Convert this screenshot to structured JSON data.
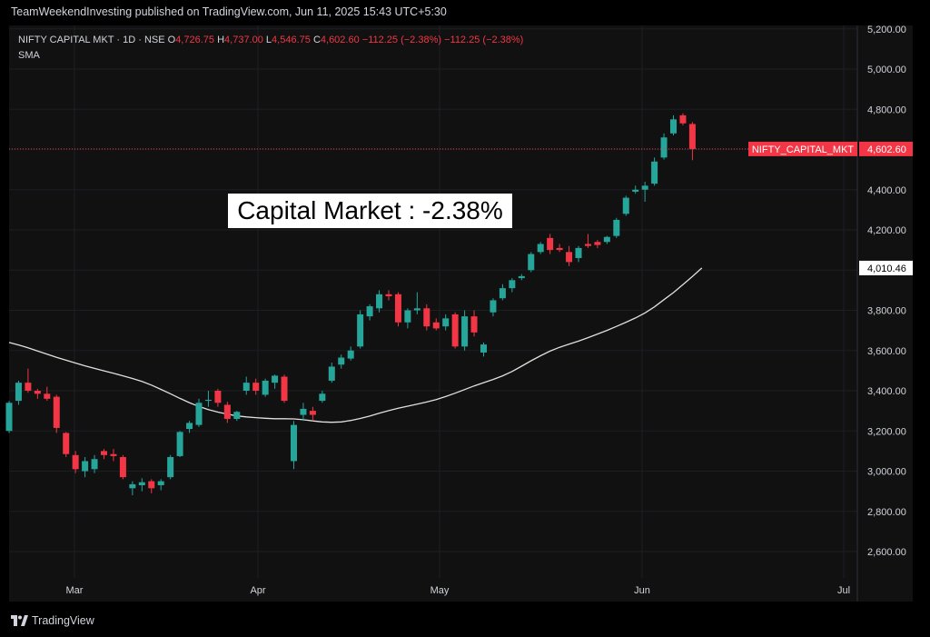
{
  "header": {
    "published_line": "TeamWeekendInvesting published on TradingView.com, Jun 11, 2025 15:43 UTC+5:30"
  },
  "legend": {
    "symbol_line": "NIFTY CAPITAL MKT · 1D · NSE",
    "open_label": "O",
    "open_value": "4,726.75",
    "high_label": "H",
    "high_value": "4,737.00",
    "low_label": "L",
    "low_value": "4,546.75",
    "close_label": "C",
    "close_value": "4,602.60",
    "change_1": "−112.25 (−2.38%)",
    "change_2": "−112.25 (−2.38%)",
    "indicator": "SMA"
  },
  "annotation": {
    "text": "Capital Market : -2.38%"
  },
  "footer": {
    "brand": "TradingView"
  },
  "colors": {
    "background": "#111111",
    "up": "#26a69a",
    "down": "#f23645",
    "sma": "#e0e0e0",
    "axis_text": "#d1d4dc"
  },
  "chart_data": {
    "type": "candlestick",
    "symbol": "NIFTY CAPITAL MKT",
    "interval": "1D",
    "exchange": "NSE",
    "y_axis": {
      "ticks": [
        2600,
        2800,
        3000,
        3200,
        3400,
        3600,
        3800,
        4000,
        4200,
        4400,
        4600,
        4800,
        5000,
        5200
      ],
      "tick_labels": [
        "2,600.00",
        "2,800.00",
        "3,000.00",
        "3,200.00",
        "3,400.00",
        "3,600.00",
        "3,800.00",
        "4,000.00",
        "4,200.00",
        "4,400.00",
        "4,600.00",
        "4,800.00",
        "5,000.00",
        "5,200.00"
      ],
      "range": [
        2470,
        5200
      ]
    },
    "x_axis": {
      "labels": [
        "Mar",
        "Apr",
        "May",
        "Jun",
        "Jul"
      ]
    },
    "last_price": {
      "label": "NIFTY_CAPITAL_MKT",
      "value": 4602.6,
      "display": "4,602.60"
    },
    "sma_last": {
      "value": 4010.46,
      "display": "4,010.46"
    },
    "candles": [
      {
        "o": 3200,
        "h": 3350,
        "l": 3190,
        "c": 3340
      },
      {
        "o": 3350,
        "h": 3450,
        "l": 3330,
        "c": 3440
      },
      {
        "o": 3440,
        "h": 3510,
        "l": 3390,
        "c": 3400
      },
      {
        "o": 3400,
        "h": 3410,
        "l": 3360,
        "c": 3385
      },
      {
        "o": 3385,
        "h": 3420,
        "l": 3350,
        "c": 3360
      },
      {
        "o": 3370,
        "h": 3380,
        "l": 3190,
        "c": 3215
      },
      {
        "o": 3190,
        "h": 3195,
        "l": 3070,
        "c": 3085
      },
      {
        "o": 3080,
        "h": 3100,
        "l": 2990,
        "c": 3010
      },
      {
        "o": 3000,
        "h": 3070,
        "l": 2970,
        "c": 3050
      },
      {
        "o": 3010,
        "h": 3080,
        "l": 2990,
        "c": 3060
      },
      {
        "o": 3100,
        "h": 3110,
        "l": 3060,
        "c": 3080
      },
      {
        "o": 3085,
        "h": 3110,
        "l": 3050,
        "c": 3075
      },
      {
        "o": 3070,
        "h": 3080,
        "l": 2960,
        "c": 2970
      },
      {
        "o": 2915,
        "h": 2950,
        "l": 2880,
        "c": 2935
      },
      {
        "o": 2930,
        "h": 2965,
        "l": 2900,
        "c": 2945
      },
      {
        "o": 2950,
        "h": 2960,
        "l": 2890,
        "c": 2915
      },
      {
        "o": 2930,
        "h": 2960,
        "l": 2905,
        "c": 2950
      },
      {
        "o": 2970,
        "h": 3080,
        "l": 2960,
        "c": 3070
      },
      {
        "o": 3075,
        "h": 3200,
        "l": 3070,
        "c": 3195
      },
      {
        "o": 3210,
        "h": 3250,
        "l": 3190,
        "c": 3240
      },
      {
        "o": 3230,
        "h": 3360,
        "l": 3220,
        "c": 3340
      },
      {
        "o": 3350,
        "h": 3400,
        "l": 3320,
        "c": 3355
      },
      {
        "o": 3400,
        "h": 3410,
        "l": 3320,
        "c": 3340
      },
      {
        "o": 3330,
        "h": 3345,
        "l": 3240,
        "c": 3260
      },
      {
        "o": 3260,
        "h": 3300,
        "l": 3250,
        "c": 3295
      },
      {
        "o": 3400,
        "h": 3470,
        "l": 3380,
        "c": 3440
      },
      {
        "o": 3440,
        "h": 3460,
        "l": 3380,
        "c": 3400
      },
      {
        "o": 3380,
        "h": 3460,
        "l": 3370,
        "c": 3450
      },
      {
        "o": 3440,
        "h": 3480,
        "l": 3410,
        "c": 3475
      },
      {
        "o": 3470,
        "h": 3480,
        "l": 3340,
        "c": 3350
      },
      {
        "o": 3050,
        "h": 3250,
        "l": 3010,
        "c": 3230
      },
      {
        "o": 3280,
        "h": 3340,
        "l": 3250,
        "c": 3310
      },
      {
        "o": 3300,
        "h": 3320,
        "l": 3250,
        "c": 3280
      },
      {
        "o": 3350,
        "h": 3400,
        "l": 3340,
        "c": 3385
      },
      {
        "o": 3450,
        "h": 3540,
        "l": 3440,
        "c": 3520
      },
      {
        "o": 3530,
        "h": 3580,
        "l": 3510,
        "c": 3565
      },
      {
        "o": 3560,
        "h": 3620,
        "l": 3550,
        "c": 3600
      },
      {
        "o": 3620,
        "h": 3800,
        "l": 3610,
        "c": 3780
      },
      {
        "o": 3770,
        "h": 3830,
        "l": 3750,
        "c": 3820
      },
      {
        "o": 3810,
        "h": 3900,
        "l": 3790,
        "c": 3880
      },
      {
        "o": 3880,
        "h": 3900,
        "l": 3850,
        "c": 3870
      },
      {
        "o": 3880,
        "h": 3890,
        "l": 3720,
        "c": 3740
      },
      {
        "o": 3740,
        "h": 3810,
        "l": 3710,
        "c": 3800
      },
      {
        "o": 3800,
        "h": 3890,
        "l": 3780,
        "c": 3810
      },
      {
        "o": 3810,
        "h": 3830,
        "l": 3700,
        "c": 3720
      },
      {
        "o": 3740,
        "h": 3760,
        "l": 3700,
        "c": 3710
      },
      {
        "o": 3720,
        "h": 3780,
        "l": 3700,
        "c": 3760
      },
      {
        "o": 3780,
        "h": 3790,
        "l": 3610,
        "c": 3620
      },
      {
        "o": 3620,
        "h": 3800,
        "l": 3600,
        "c": 3770
      },
      {
        "o": 3770,
        "h": 3800,
        "l": 3670,
        "c": 3690
      },
      {
        "o": 3590,
        "h": 3640,
        "l": 3570,
        "c": 3630
      },
      {
        "o": 3790,
        "h": 3860,
        "l": 3770,
        "c": 3850
      },
      {
        "o": 3860,
        "h": 3930,
        "l": 3850,
        "c": 3910
      },
      {
        "o": 3910,
        "h": 3960,
        "l": 3890,
        "c": 3950
      },
      {
        "o": 3960,
        "h": 3980,
        "l": 3950,
        "c": 3970
      },
      {
        "o": 4000,
        "h": 4090,
        "l": 3990,
        "c": 4080
      },
      {
        "o": 4090,
        "h": 4140,
        "l": 4080,
        "c": 4130
      },
      {
        "o": 4160,
        "h": 4180,
        "l": 4080,
        "c": 4100
      },
      {
        "o": 4110,
        "h": 4130,
        "l": 4090,
        "c": 4100
      },
      {
        "o": 4090,
        "h": 4120,
        "l": 4020,
        "c": 4040
      },
      {
        "o": 4060,
        "h": 4120,
        "l": 4040,
        "c": 4110
      },
      {
        "o": 4130,
        "h": 4180,
        "l": 4110,
        "c": 4120
      },
      {
        "o": 4140,
        "h": 4150,
        "l": 4110,
        "c": 4125
      },
      {
        "o": 4140,
        "h": 4170,
        "l": 4130,
        "c": 4165
      },
      {
        "o": 4170,
        "h": 4260,
        "l": 4160,
        "c": 4250
      },
      {
        "o": 4280,
        "h": 4370,
        "l": 4270,
        "c": 4360
      },
      {
        "o": 4390,
        "h": 4420,
        "l": 4380,
        "c": 4400
      },
      {
        "o": 4400,
        "h": 4440,
        "l": 4340,
        "c": 4420
      },
      {
        "o": 4430,
        "h": 4560,
        "l": 4420,
        "c": 4540
      },
      {
        "o": 4560,
        "h": 4680,
        "l": 4550,
        "c": 4660
      },
      {
        "o": 4680,
        "h": 4770,
        "l": 4670,
        "c": 4750
      },
      {
        "o": 4770,
        "h": 4780,
        "l": 4720,
        "c": 4730
      },
      {
        "o": 4726.75,
        "h": 4737,
        "l": 4546.75,
        "c": 4602.6
      }
    ],
    "sma": [
      3640,
      3628,
      3614,
      3598,
      3582,
      3566,
      3552,
      3538,
      3524,
      3511,
      3499,
      3487,
      3474,
      3461,
      3446,
      3428,
      3407,
      3385,
      3362,
      3341,
      3322,
      3306,
      3294,
      3284,
      3275,
      3270,
      3266,
      3263,
      3261,
      3261,
      3260,
      3256,
      3250,
      3245,
      3243,
      3245,
      3252,
      3262,
      3274,
      3288,
      3301,
      3313,
      3323,
      3333,
      3344,
      3356,
      3371,
      3388,
      3406,
      3424,
      3440,
      3456,
      3474,
      3496,
      3522,
      3549,
      3574,
      3597,
      3616,
      3632,
      3647,
      3664,
      3682,
      3700,
      3720,
      3741,
      3762,
      3787,
      3817,
      3853,
      3888,
      3928,
      3968,
      4010.46
    ]
  }
}
